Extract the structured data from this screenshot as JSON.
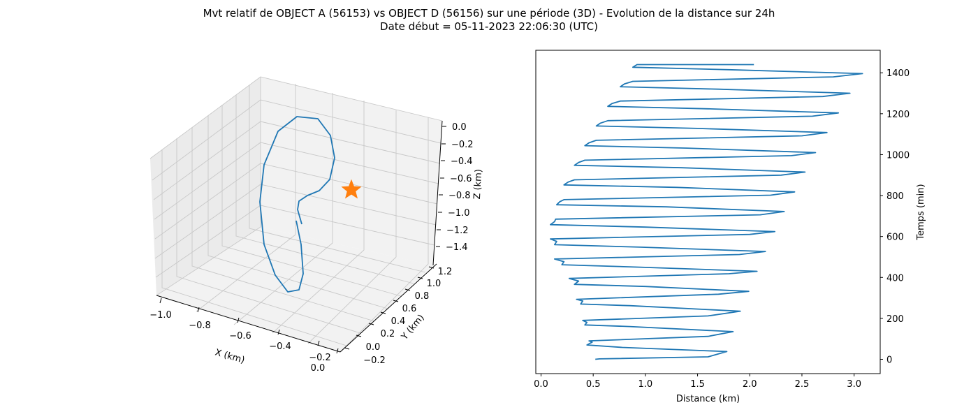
{
  "title_line1": "Mvt relatif de OBJECT A (56153) vs OBJECT D (56156) sur une période (3D) - Evolution de la distance sur 24h",
  "title_line2": "Date début = 05-11-2023 22:06:30 (UTC)",
  "colors": {
    "series": "#1f77b4",
    "marker": "#ff7f0e"
  },
  "chart_data": [
    {
      "type": "line",
      "projection": "3d",
      "xlabel": "X (km)",
      "ylabel": "Y (km)",
      "zlabel": "Z (km)",
      "xticks": [
        "−1.0",
        "−0.8",
        "−0.6",
        "−0.4",
        "−0.2",
        "0.0"
      ],
      "yticks": [
        "−0.2",
        "0.0",
        "0.2",
        "0.4",
        "0.6",
        "0.8",
        "1.0",
        "1.2"
      ],
      "zticks": [
        "0.0",
        "−0.2",
        "−0.4",
        "−0.6",
        "−0.8",
        "−1.0",
        "−1.2",
        "−1.4"
      ],
      "grid": true,
      "series": [
        {
          "marker": "none"
        }
      ],
      "origin_marker": {
        "shape": "star",
        "x": 0.0,
        "y": 0.0,
        "z": 0.0
      }
    },
    {
      "type": "line",
      "xlabel": "Distance (km)",
      "ylabel": "Temps (min)",
      "ylabel_position": "right",
      "xlim": [
        -0.05,
        3.25
      ],
      "ylim": [
        -70,
        1510
      ],
      "xticks": [
        "0.0",
        "0.5",
        "1.0",
        "1.5",
        "2.0",
        "2.5",
        "3.0"
      ],
      "yticks": [
        "0",
        "200",
        "400",
        "600",
        "800",
        "1000",
        "1200",
        "1400"
      ],
      "series": [
        {
          "x": [
            0.52,
            0.56,
            1.6,
            1.78,
            0.78,
            0.44,
            0.49,
            0.46,
            1.6,
            1.84,
            0.85,
            0.42,
            0.44,
            0.4,
            1.6,
            1.91,
            0.85,
            0.38,
            0.4,
            0.34,
            1.7,
            1.99,
            1.0,
            0.32,
            0.36,
            0.27,
            1.8,
            2.07,
            0.95,
            0.2,
            0.22,
            0.13,
            1.9,
            2.15,
            0.95,
            0.13,
            0.15,
            0.09,
            2.0,
            2.24,
            1.0,
            0.09,
            0.13,
            0.14,
            2.1,
            2.33,
            1.2,
            0.15,
            0.18,
            0.22,
            2.2,
            2.43,
            1.3,
            0.22,
            0.26,
            0.32,
            2.3,
            2.53,
            1.35,
            0.32,
            0.36,
            0.42,
            2.4,
            2.63,
            1.4,
            0.42,
            0.46,
            0.53,
            2.5,
            2.74,
            1.5,
            0.53,
            0.57,
            0.64,
            2.6,
            2.85,
            1.6,
            0.64,
            0.68,
            0.76,
            2.7,
            2.96,
            1.7,
            0.76,
            0.8,
            0.88,
            2.8,
            3.08,
            1.8,
            0.88,
            0.92,
            2.04
          ],
          "y": [
            0,
            2,
            12,
            38,
            58,
            70,
            84,
            90,
            112,
            135,
            160,
            168,
            180,
            190,
            212,
            235,
            262,
            270,
            285,
            293,
            318,
            332,
            356,
            366,
            382,
            395,
            418,
            430,
            450,
            462,
            477,
            490,
            512,
            527,
            548,
            560,
            576,
            588,
            610,
            624,
            646,
            658,
            673,
            685,
            706,
            722,
            745,
            755,
            770,
            780,
            802,
            818,
            840,
            852,
            866,
            877,
            900,
            915,
            936,
            948,
            962,
            973,
            995,
            1010,
            1032,
            1044,
            1058,
            1070,
            1092,
            1108,
            1128,
            1140,
            1154,
            1166,
            1188,
            1204,
            1224,
            1236,
            1250,
            1262,
            1284,
            1300,
            1320,
            1332,
            1346,
            1358,
            1380,
            1396,
            1415,
            1427,
            1440,
            1440
          ]
        }
      ]
    }
  ]
}
